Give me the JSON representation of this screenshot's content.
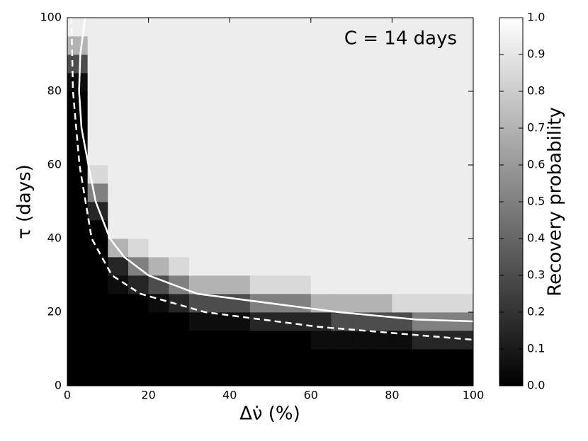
{
  "chart_data": {
    "type": "heatmap",
    "annotation": "C = 14 days",
    "xlabel": "Δν̇ (%)",
    "ylabel": "τ (days)",
    "xlim": [
      0,
      100
    ],
    "ylim": [
      0,
      100
    ],
    "xticks": [
      0,
      20,
      40,
      60,
      80,
      100
    ],
    "yticks": [
      0,
      20,
      40,
      60,
      80,
      100
    ],
    "colormap": "gray",
    "x_bins": [
      0,
      5,
      10,
      15,
      20,
      25,
      30,
      35,
      40,
      45,
      50,
      55,
      60,
      65,
      70,
      75,
      80,
      85,
      90,
      95,
      100
    ],
    "y_bins": [
      0,
      5,
      10,
      15,
      20,
      25,
      30,
      35,
      40,
      45,
      50,
      55,
      60,
      65,
      70,
      75,
      80,
      85,
      90,
      95,
      100
    ],
    "z": [
      [
        0,
        0,
        0,
        0,
        0,
        0,
        0,
        0,
        0,
        0,
        0,
        0,
        0,
        0,
        0,
        0,
        0,
        0,
        0,
        0
      ],
      [
        0,
        0,
        0,
        0,
        0,
        0,
        0,
        0,
        0,
        0,
        0,
        0,
        0,
        0,
        0,
        0,
        0,
        0,
        0,
        0
      ],
      [
        0,
        0,
        0,
        0,
        0,
        0,
        0,
        0,
        0,
        0,
        0,
        0,
        0.05,
        0.05,
        0.05,
        0.05,
        0.05,
        0.15,
        0.15,
        0.15
      ],
      [
        0,
        0,
        0,
        0,
        0,
        0,
        0.05,
        0.05,
        0.05,
        0.15,
        0.15,
        0.15,
        0.15,
        0.3,
        0.3,
        0.3,
        0.3,
        0.5,
        0.5,
        0.5
      ],
      [
        0,
        0,
        0,
        0,
        0.05,
        0.15,
        0.3,
        0.3,
        0.3,
        0.5,
        0.5,
        0.5,
        0.7,
        0.7,
        0.7,
        0.7,
        0.85,
        0.85,
        0.85,
        0.85
      ],
      [
        0,
        0,
        0.05,
        0.15,
        0.3,
        0.5,
        0.7,
        0.7,
        0.7,
        0.85,
        0.85,
        0.85,
        0.93,
        0.93,
        0.93,
        0.93,
        0.93,
        0.93,
        0.93,
        0.93
      ],
      [
        0,
        0,
        0.15,
        0.5,
        0.7,
        0.85,
        0.93,
        0.93,
        0.93,
        0.93,
        0.93,
        0.93,
        0.93,
        0.93,
        0.93,
        0.93,
        0.93,
        0.93,
        0.93,
        0.93
      ],
      [
        0,
        0,
        0.7,
        0.85,
        0.93,
        0.93,
        0.93,
        0.93,
        0.93,
        0.93,
        0.93,
        0.93,
        0.93,
        0.93,
        0.93,
        0.93,
        0.93,
        0.93,
        0.93,
        0.93
      ],
      [
        0,
        0,
        0.93,
        0.93,
        0.93,
        0.93,
        0.93,
        0.93,
        0.93,
        0.93,
        0.93,
        0.93,
        0.93,
        0.93,
        0.93,
        0.93,
        0.93,
        0.93,
        0.93,
        0.93
      ],
      [
        0,
        0.15,
        0.93,
        0.93,
        0.93,
        0.93,
        0.93,
        0.93,
        0.93,
        0.93,
        0.93,
        0.93,
        0.93,
        0.93,
        0.93,
        0.93,
        0.93,
        0.93,
        0.93,
        0.93
      ],
      [
        0,
        0.5,
        0.93,
        0.93,
        0.93,
        0.93,
        0.93,
        0.93,
        0.93,
        0.93,
        0.93,
        0.93,
        0.93,
        0.93,
        0.93,
        0.93,
        0.93,
        0.93,
        0.93,
        0.93
      ],
      [
        0,
        0.85,
        0.93,
        0.93,
        0.93,
        0.93,
        0.93,
        0.93,
        0.93,
        0.93,
        0.93,
        0.93,
        0.93,
        0.93,
        0.93,
        0.93,
        0.93,
        0.93,
        0.93,
        0.93
      ],
      [
        0,
        0.93,
        0.93,
        0.93,
        0.93,
        0.93,
        0.93,
        0.93,
        0.93,
        0.93,
        0.93,
        0.93,
        0.93,
        0.93,
        0.93,
        0.93,
        0.93,
        0.93,
        0.93,
        0.93
      ],
      [
        0,
        0.93,
        0.93,
        0.93,
        0.93,
        0.93,
        0.93,
        0.93,
        0.93,
        0.93,
        0.93,
        0.93,
        0.93,
        0.93,
        0.93,
        0.93,
        0.93,
        0.93,
        0.93,
        0.93
      ],
      [
        0,
        0.93,
        0.93,
        0.93,
        0.93,
        0.93,
        0.93,
        0.93,
        0.93,
        0.93,
        0.93,
        0.93,
        0.93,
        0.93,
        0.93,
        0.93,
        0.93,
        0.93,
        0.93,
        0.93
      ],
      [
        0,
        0.93,
        0.93,
        0.93,
        0.93,
        0.93,
        0.93,
        0.93,
        0.93,
        0.93,
        0.93,
        0.93,
        0.93,
        0.93,
        0.93,
        0.93,
        0.93,
        0.93,
        0.93,
        0.93
      ],
      [
        0.05,
        0.93,
        0.93,
        0.93,
        0.93,
        0.93,
        0.93,
        0.93,
        0.93,
        0.93,
        0.93,
        0.93,
        0.93,
        0.93,
        0.93,
        0.93,
        0.93,
        0.93,
        0.93,
        0.93
      ],
      [
        0.3,
        0.93,
        0.93,
        0.93,
        0.93,
        0.93,
        0.93,
        0.93,
        0.93,
        0.93,
        0.93,
        0.93,
        0.93,
        0.93,
        0.93,
        0.93,
        0.93,
        0.93,
        0.93,
        0.93
      ],
      [
        0.7,
        0.93,
        0.93,
        0.93,
        0.93,
        0.93,
        0.93,
        0.93,
        0.93,
        0.93,
        0.93,
        0.93,
        0.93,
        0.93,
        0.93,
        0.93,
        0.93,
        0.93,
        0.93,
        0.93
      ],
      [
        0.93,
        0.93,
        0.93,
        0.93,
        0.93,
        0.93,
        0.93,
        0.93,
        0.93,
        0.93,
        0.93,
        0.93,
        0.93,
        0.93,
        0.93,
        0.93,
        0.93,
        0.93,
        0.93,
        0.93
      ]
    ],
    "lines": [
      {
        "color": "#ffffff",
        "style": "solid",
        "x": [
          4.4,
          3.2,
          2.9,
          3.5,
          5.2,
          7,
          10.5,
          14,
          20,
          32,
          53,
          67,
          86,
          100
        ],
        "y": [
          100,
          90,
          80,
          70,
          60,
          50,
          40,
          35,
          30,
          25,
          22,
          20,
          18,
          17.5
        ]
      },
      {
        "color": "#ffffff",
        "style": "dashed",
        "x": [
          1,
          1.4,
          3,
          6,
          11,
          18,
          34,
          62,
          100
        ],
        "y": [
          100,
          80,
          60,
          40,
          30,
          25,
          20,
          16,
          12.5
        ]
      }
    ],
    "colorbar": {
      "label": "Recovery probability",
      "lim": [
        0,
        1
      ],
      "ticks": [
        {
          "value": 0,
          "label": "0.0"
        },
        0.1,
        0.2,
        0.3,
        0.4,
        0.5,
        0.6,
        0.7,
        0.8,
        0.9,
        {
          "value": 1,
          "label": "1.0"
        }
      ]
    }
  }
}
